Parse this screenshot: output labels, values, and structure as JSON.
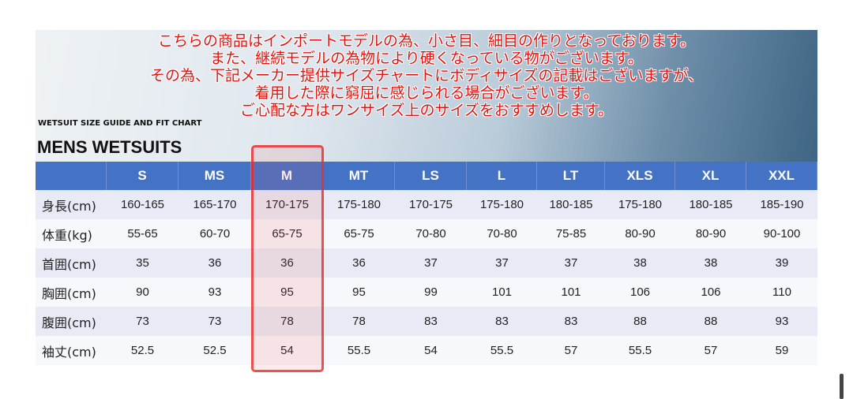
{
  "notice": {
    "lines": [
      "こちらの商品はインポートモデルの為、小さ目、細目の作りとなっております。",
      "また、継続モデルの為物により硬くなっている物がございます。",
      "その為、下記メーカー提供サイズチャートにボディサイズの記載はございますが、",
      "着用した際に窮屈に感じられる場合がございます。",
      "ご心配な方はワンサイズ上のサイズをおすすめします。"
    ]
  },
  "header": {
    "subtitle": "WETSUIT SIZE GUIDE AND FIT CHART",
    "title": "MENS WETSUITS"
  },
  "table": {
    "columns": [
      "S",
      "MS",
      "M",
      "MT",
      "LS",
      "L",
      "LT",
      "XLS",
      "XL",
      "XXL"
    ],
    "rows": [
      {
        "label": "身長(cm)",
        "values": [
          "160-165",
          "165-170",
          "170-175",
          "175-180",
          "170-175",
          "175-180",
          "180-185",
          "175-180",
          "180-185",
          "185-190"
        ]
      },
      {
        "label": "体重(kg)",
        "values": [
          "55-65",
          "60-70",
          "65-75",
          "65-75",
          "70-80",
          "70-80",
          "75-85",
          "80-90",
          "80-90",
          "90-100"
        ]
      },
      {
        "label": "首囲(cm)",
        "values": [
          35,
          36,
          36,
          36,
          37,
          37,
          37,
          38,
          38,
          39
        ]
      },
      {
        "label": "胸囲(cm)",
        "values": [
          90,
          93,
          95,
          95,
          99,
          101,
          101,
          106,
          106,
          110
        ]
      },
      {
        "label": "腹囲(cm)",
        "values": [
          73,
          73,
          78,
          78,
          83,
          83,
          83,
          88,
          88,
          93
        ]
      },
      {
        "label": "袖丈(cm)",
        "values": [
          52.5,
          52.5,
          54,
          55.5,
          54,
          55.5,
          57,
          55.5,
          57,
          59
        ]
      }
    ]
  }
}
